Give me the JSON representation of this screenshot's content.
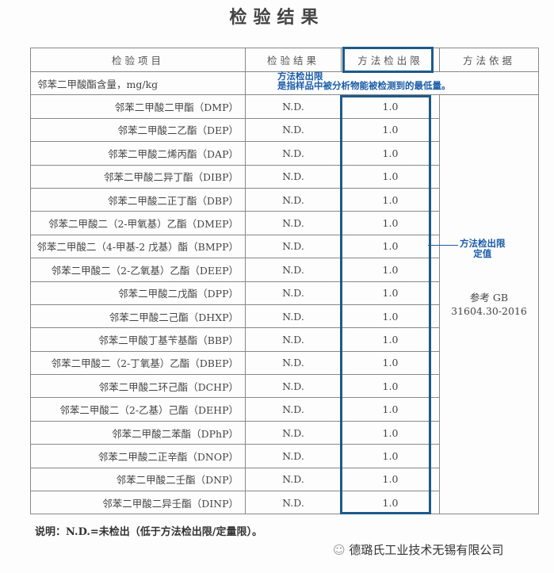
{
  "title": "检验结果",
  "headers": [
    "检验项目",
    "检验结果",
    "方法检出限",
    "方法依据"
  ],
  "group_row": "邻苯二甲酸酯含量，mg/kg",
  "rows": [
    {
      "item": "邻苯二甲酸二甲酯（DMP）",
      "result": "N.D.",
      "limit": "1.0"
    },
    {
      "item": "邻苯二甲酸二乙酯（DEP）",
      "result": "N.D.",
      "limit": "1.0"
    },
    {
      "item": "邻苯二甲酸二烯丙酯（DAP）",
      "result": "N.D.",
      "limit": "1.0"
    },
    {
      "item": "邻苯二甲酸二异丁酯（DIBP）",
      "result": "N.D.",
      "limit": "1.0"
    },
    {
      "item": "邻苯二甲酸二正丁酯（DBP）",
      "result": "N.D.",
      "limit": "1.0"
    },
    {
      "item": "邻苯二甲酸二（2-甲氧基）乙酯（DMEP）",
      "result": "N.D.",
      "limit": "1.0"
    },
    {
      "item": "邻苯二甲酸二（4-甲基-2 戊基）酯（BMPP）",
      "result": "N.D.",
      "limit": "1.0"
    },
    {
      "item": "邻苯二甲酸二（2-乙氧基）乙酯（DEEP）",
      "result": "N.D.",
      "limit": "1.0"
    },
    {
      "item": "邻苯二甲酸二戊酯（DPP）",
      "result": "N.D.",
      "limit": "1.0"
    },
    {
      "item": "邻苯二甲酸二己酯（DHXP）",
      "result": "N.D.",
      "limit": "1.0"
    },
    {
      "item": "邻苯二甲酸丁基苄基酯（BBP）",
      "result": "N.D.",
      "limit": "1.0"
    },
    {
      "item": "邻苯二甲酸二（2-丁氧基）乙酯（DBEP）",
      "result": "N.D.",
      "limit": "1.0"
    },
    {
      "item": "邻苯二甲酸二环己酯（DCHP）",
      "result": "N.D.",
      "limit": "1.0"
    },
    {
      "item": "邻苯二甲酸二（2-乙基）己酯（DEHP）",
      "result": "N.D.",
      "limit": "1.0"
    },
    {
      "item": "邻苯二甲酸二苯酯（DPhP）",
      "result": "N.D.",
      "limit": "1.0"
    },
    {
      "item": "邻苯二甲酸二正辛酯（DNOP）",
      "result": "N.D.",
      "limit": "1.0"
    },
    {
      "item": "邻苯二甲酸二壬酯（DNP）",
      "result": "N.D.",
      "limit": "1.0"
    },
    {
      "item": "邻苯二甲酸二异壬酯（DINP）",
      "result": "N.D.",
      "limit": "1.0"
    }
  ],
  "basis": [
    "参考 GB",
    "31604.30-2016"
  ],
  "annotation_top": [
    "方法检出限",
    "是指样品中被分析物能被检测到的最低量。"
  ],
  "annotation_right": [
    "方法检出限",
    "定值"
  ],
  "footnote": "说明：N.D.=未检出（低于方法检出限/定量限）。",
  "watermark": "德璐氏工业技术无锡有限公司",
  "colors": {
    "highlight": "#1d5a8a",
    "annotation": "#1a5ca8"
  }
}
